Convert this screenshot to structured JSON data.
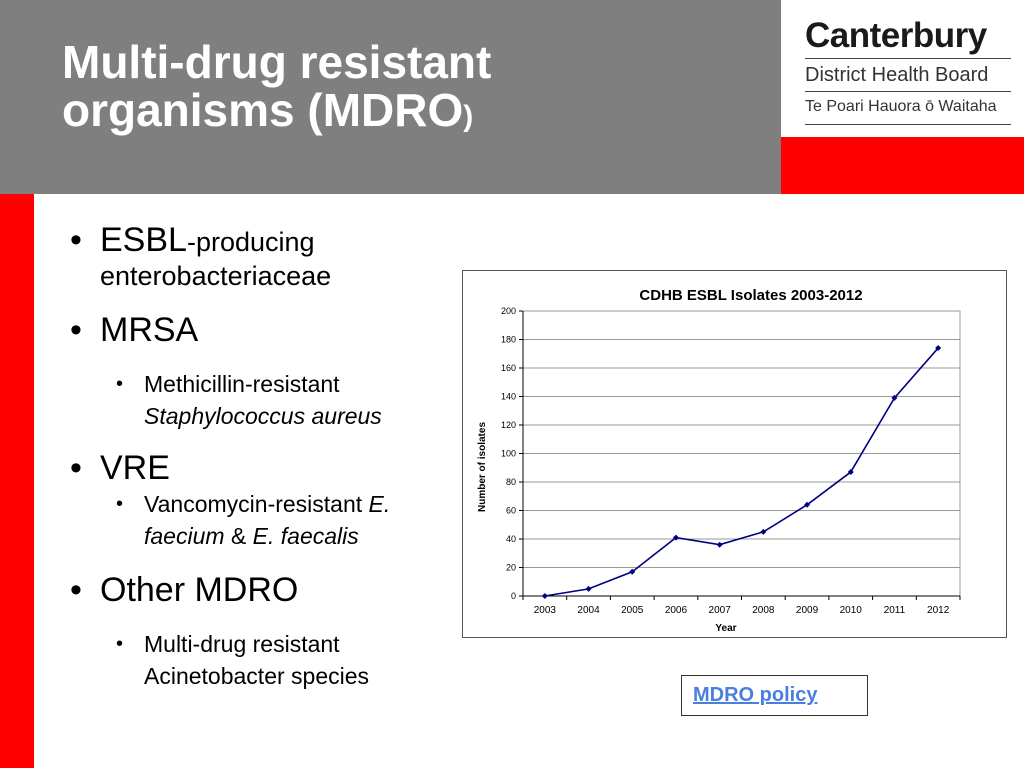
{
  "slide": {
    "title_line1": "Multi-drug resistant",
    "title_line2": "organisms (MDRO",
    "title_paren": ")"
  },
  "logo": {
    "name": "Canterbury",
    "line2": "District Health Board",
    "line3": "Te Poari Hauora ō Waitaha"
  },
  "colors": {
    "header": "#7f7f7f",
    "accent_red": "#ff0000",
    "series_line": "#000080"
  },
  "bullets": {
    "esbl_main": "ESBL",
    "esbl_rest1": "-producing",
    "esbl_rest2": "enterobacteriaceae",
    "mrsa": "MRSA",
    "mrsa_sub1": "Methicillin-resistant",
    "mrsa_sub2": "Staphylococcus aureus",
    "vre": "VRE",
    "vre_sub1a": "Vancomycin-resistant ",
    "vre_sub1b": "E.",
    "vre_sub2a": "faecium",
    "vre_sub2b": " & ",
    "vre_sub2c": "E. faecalis",
    "other": "Other MDRO",
    "other_sub1": "Multi-drug resistant",
    "other_sub2": "Acinetobacter species",
    "bullet_char": "•"
  },
  "policy_link": "MDRO policy",
  "chart_data": {
    "type": "line",
    "title": "CDHB ESBL Isolates 2003-2012",
    "xlabel": "Year",
    "ylabel": "Number of isolates",
    "categories": [
      "2003",
      "2004",
      "2005",
      "2006",
      "2007",
      "2008",
      "2009",
      "2010",
      "2011",
      "2012"
    ],
    "values": [
      0,
      5,
      17,
      41,
      36,
      45,
      64,
      87,
      139,
      174
    ],
    "ylim": [
      0,
      200
    ],
    "yticks": [
      0,
      20,
      40,
      60,
      80,
      100,
      120,
      140,
      160,
      180,
      200
    ],
    "grid": true,
    "legend": "none"
  }
}
